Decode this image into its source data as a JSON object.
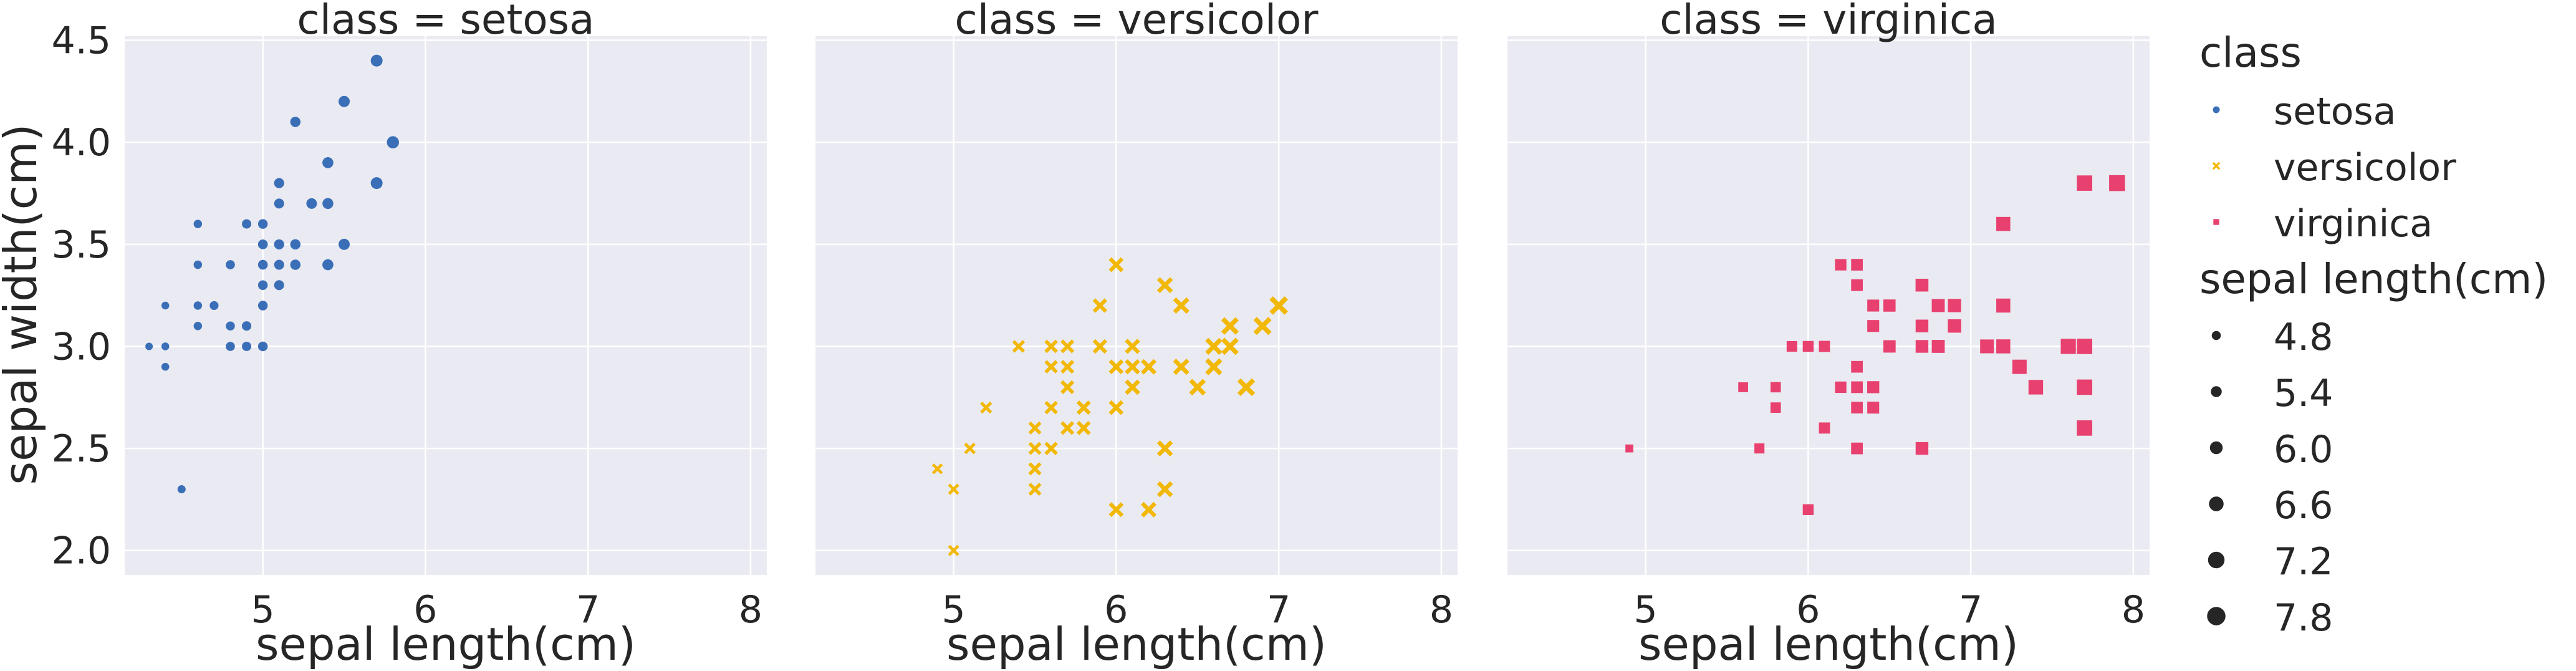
{
  "chart_data": {
    "type": "scatter",
    "shared_y_label": "sepal width(cm)",
    "x_ticks": [
      "5",
      "6",
      "7",
      "8"
    ],
    "y_ticks": [
      "2.0",
      "2.5",
      "3.0",
      "3.5",
      "4.0",
      "4.5"
    ],
    "xlim": [
      4.15,
      8.1
    ],
    "ylim": [
      1.88,
      4.52
    ],
    "grid": true,
    "legend_placement": "right",
    "size_range_data": [
      4.3,
      7.9
    ],
    "panels": [
      {
        "title": "class = setosa",
        "xlabel": "sepal length(cm)",
        "series": "setosa",
        "color": "#3a6fb8",
        "marker": "circle",
        "points": [
          [
            5.1,
            3.5
          ],
          [
            4.9,
            3.0
          ],
          [
            4.7,
            3.2
          ],
          [
            4.6,
            3.1
          ],
          [
            5.0,
            3.6
          ],
          [
            5.4,
            3.9
          ],
          [
            4.6,
            3.4
          ],
          [
            5.0,
            3.4
          ],
          [
            4.4,
            2.9
          ],
          [
            4.9,
            3.1
          ],
          [
            5.4,
            3.7
          ],
          [
            4.8,
            3.4
          ],
          [
            4.8,
            3.0
          ],
          [
            4.3,
            3.0
          ],
          [
            5.8,
            4.0
          ],
          [
            5.7,
            4.4
          ],
          [
            5.4,
            3.9
          ],
          [
            5.1,
            3.5
          ],
          [
            5.7,
            3.8
          ],
          [
            5.1,
            3.8
          ],
          [
            5.4,
            3.4
          ],
          [
            5.1,
            3.7
          ],
          [
            4.6,
            3.6
          ],
          [
            5.1,
            3.3
          ],
          [
            4.8,
            3.4
          ],
          [
            5.0,
            3.0
          ],
          [
            5.0,
            3.4
          ],
          [
            5.2,
            3.5
          ],
          [
            5.2,
            3.4
          ],
          [
            4.7,
            3.2
          ],
          [
            4.8,
            3.1
          ],
          [
            5.4,
            3.4
          ],
          [
            5.2,
            4.1
          ],
          [
            5.5,
            4.2
          ],
          [
            4.9,
            3.1
          ],
          [
            5.0,
            3.2
          ],
          [
            5.5,
            3.5
          ],
          [
            4.9,
            3.6
          ],
          [
            4.4,
            3.0
          ],
          [
            5.1,
            3.4
          ],
          [
            5.0,
            3.5
          ],
          [
            4.5,
            2.3
          ],
          [
            4.4,
            3.2
          ],
          [
            5.0,
            3.5
          ],
          [
            5.1,
            3.8
          ],
          [
            4.8,
            3.0
          ],
          [
            5.1,
            3.8
          ],
          [
            4.6,
            3.2
          ],
          [
            5.3,
            3.7
          ],
          [
            5.0,
            3.3
          ]
        ]
      },
      {
        "title": "class = versicolor",
        "xlabel": "sepal length(cm)",
        "series": "versicolor",
        "color": "#f2b807",
        "marker": "x",
        "points": [
          [
            7.0,
            3.2
          ],
          [
            6.4,
            3.2
          ],
          [
            6.9,
            3.1
          ],
          [
            5.5,
            2.3
          ],
          [
            6.5,
            2.8
          ],
          [
            5.7,
            2.8
          ],
          [
            6.3,
            3.3
          ],
          [
            4.9,
            2.4
          ],
          [
            6.6,
            2.9
          ],
          [
            5.2,
            2.7
          ],
          [
            5.0,
            2.0
          ],
          [
            5.9,
            3.0
          ],
          [
            6.0,
            2.2
          ],
          [
            6.1,
            2.9
          ],
          [
            5.6,
            2.9
          ],
          [
            6.7,
            3.1
          ],
          [
            5.6,
            3.0
          ],
          [
            5.8,
            2.7
          ],
          [
            6.2,
            2.2
          ],
          [
            5.6,
            2.5
          ],
          [
            5.9,
            3.2
          ],
          [
            6.1,
            2.8
          ],
          [
            6.3,
            2.5
          ],
          [
            6.1,
            2.8
          ],
          [
            6.4,
            2.9
          ],
          [
            6.6,
            3.0
          ],
          [
            6.8,
            2.8
          ],
          [
            6.7,
            3.0
          ],
          [
            6.0,
            2.9
          ],
          [
            5.7,
            2.6
          ],
          [
            5.5,
            2.4
          ],
          [
            5.5,
            2.4
          ],
          [
            5.8,
            2.7
          ],
          [
            6.0,
            2.7
          ],
          [
            5.4,
            3.0
          ],
          [
            6.0,
            3.4
          ],
          [
            6.7,
            3.1
          ],
          [
            6.3,
            2.3
          ],
          [
            5.6,
            3.0
          ],
          [
            5.5,
            2.5
          ],
          [
            5.5,
            2.6
          ],
          [
            6.1,
            3.0
          ],
          [
            5.8,
            2.6
          ],
          [
            5.0,
            2.3
          ],
          [
            5.6,
            2.7
          ],
          [
            5.7,
            3.0
          ],
          [
            5.7,
            2.9
          ],
          [
            6.2,
            2.9
          ],
          [
            5.1,
            2.5
          ],
          [
            5.7,
            2.8
          ]
        ]
      },
      {
        "title": "class = virginica",
        "xlabel": "sepal length(cm)",
        "series": "virginica",
        "color": "#e8416f",
        "marker": "square",
        "points": [
          [
            6.3,
            3.3
          ],
          [
            5.8,
            2.7
          ],
          [
            7.1,
            3.0
          ],
          [
            6.3,
            2.9
          ],
          [
            6.5,
            3.0
          ],
          [
            7.6,
            3.0
          ],
          [
            4.9,
            2.5
          ],
          [
            7.3,
            2.9
          ],
          [
            6.7,
            2.5
          ],
          [
            7.2,
            3.6
          ],
          [
            6.5,
            3.2
          ],
          [
            6.4,
            2.7
          ],
          [
            6.8,
            3.0
          ],
          [
            5.7,
            2.5
          ],
          [
            5.8,
            2.8
          ],
          [
            6.4,
            3.2
          ],
          [
            6.5,
            3.0
          ],
          [
            7.7,
            3.8
          ],
          [
            7.7,
            2.6
          ],
          [
            6.0,
            2.2
          ],
          [
            6.9,
            3.2
          ],
          [
            5.6,
            2.8
          ],
          [
            7.7,
            2.8
          ],
          [
            6.3,
            2.7
          ],
          [
            6.7,
            3.3
          ],
          [
            7.2,
            3.2
          ],
          [
            6.2,
            2.8
          ],
          [
            6.1,
            3.0
          ],
          [
            6.4,
            2.8
          ],
          [
            7.2,
            3.0
          ],
          [
            7.4,
            2.8
          ],
          [
            7.9,
            3.8
          ],
          [
            6.4,
            2.8
          ],
          [
            6.3,
            2.8
          ],
          [
            6.1,
            2.6
          ],
          [
            7.7,
            3.0
          ],
          [
            6.3,
            3.4
          ],
          [
            6.4,
            3.1
          ],
          [
            6.0,
            3.0
          ],
          [
            6.9,
            3.1
          ],
          [
            6.7,
            3.1
          ],
          [
            6.9,
            3.1
          ],
          [
            5.8,
            2.7
          ],
          [
            6.8,
            3.2
          ],
          [
            6.7,
            3.3
          ],
          [
            6.7,
            3.0
          ],
          [
            6.3,
            2.5
          ],
          [
            6.5,
            3.0
          ],
          [
            6.2,
            3.4
          ],
          [
            5.9,
            3.0
          ]
        ]
      }
    ],
    "legend": {
      "hue_title": "class",
      "hue_entries": [
        {
          "label": "setosa",
          "color": "#3a6fb8",
          "marker": "circle"
        },
        {
          "label": "versicolor",
          "color": "#f2b807",
          "marker": "x"
        },
        {
          "label": "virginica",
          "color": "#e8416f",
          "marker": "square"
        }
      ],
      "size_title": "sepal length(cm)",
      "size_entries": [
        {
          "label": "4.8",
          "value": 4.8
        },
        {
          "label": "5.4",
          "value": 5.4
        },
        {
          "label": "6.0",
          "value": 6.0
        },
        {
          "label": "6.6",
          "value": 6.6
        },
        {
          "label": "7.2",
          "value": 7.2
        },
        {
          "label": "7.8",
          "value": 7.8
        }
      ]
    }
  },
  "colors": {
    "panel_background": "#eaeaf2",
    "grid": "#ffffff",
    "text": "#262626",
    "legend_size_marker": "#262626"
  }
}
